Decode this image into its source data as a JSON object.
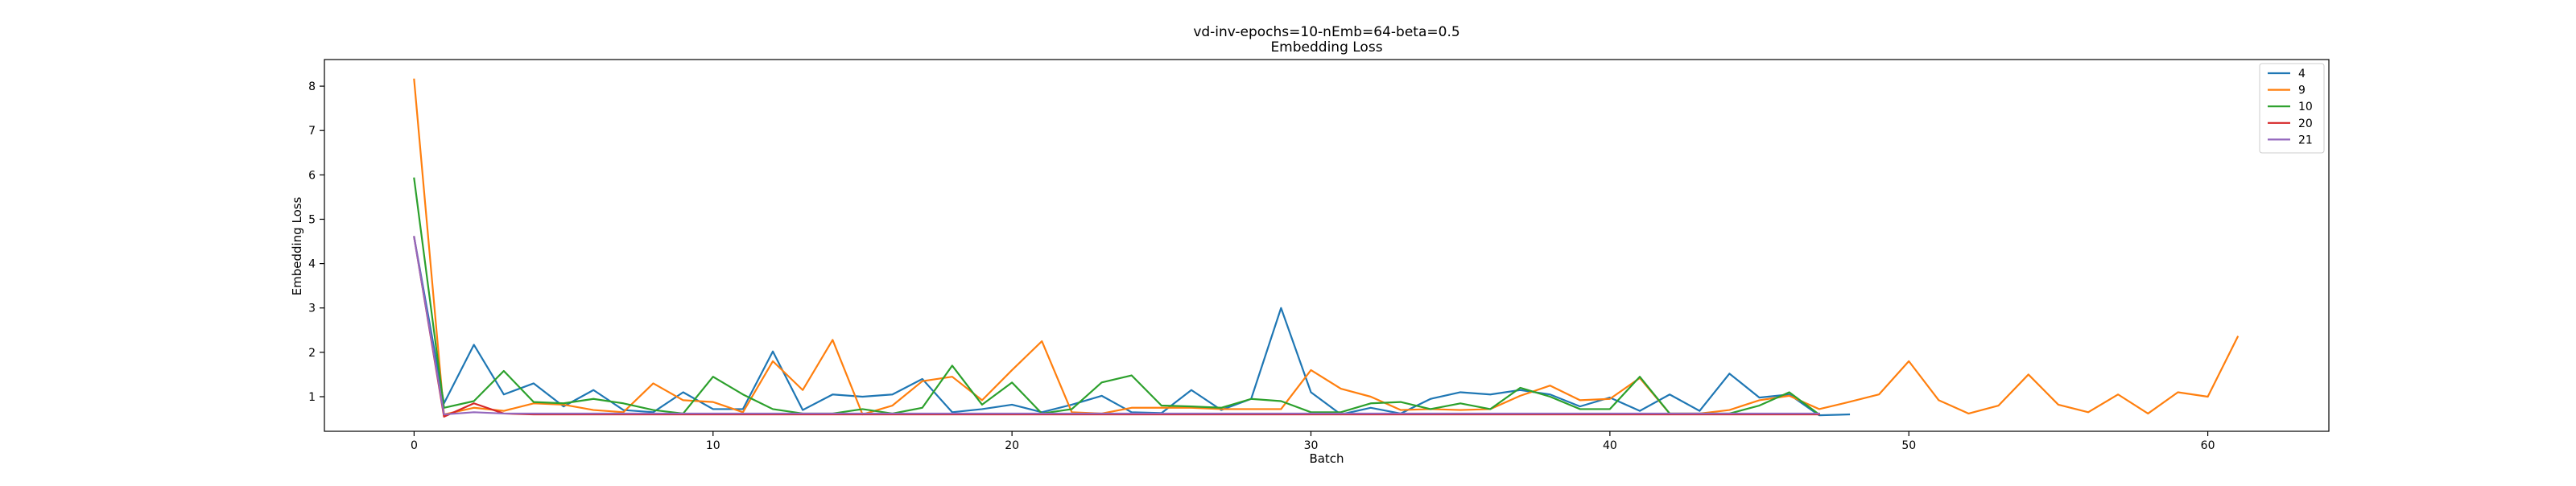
{
  "chart_data": {
    "type": "line",
    "title": "vd-inv-epochs=10-nEmb=64-beta=0.5",
    "subtitle": "Embedding Loss",
    "xlabel": "Batch",
    "ylabel": "Embedding Loss",
    "xlim": [
      -3,
      64.05
    ],
    "ylim": [
      0.22,
      8.6
    ],
    "xticks": [
      0,
      10,
      20,
      30,
      40,
      50,
      60
    ],
    "yticks": [
      1,
      2,
      3,
      4,
      5,
      6,
      7,
      8
    ],
    "grid": false,
    "legend_position": "top-right",
    "series": [
      {
        "name": "4",
        "color": "#1f77b4",
        "x": [
          0,
          1,
          2,
          3,
          4,
          5,
          6,
          7,
          8,
          9,
          10,
          11,
          12,
          13,
          14,
          15,
          16,
          17,
          18,
          19,
          20,
          21,
          22,
          23,
          24,
          25,
          26,
          27,
          28,
          29,
          30,
          31,
          32,
          33,
          34,
          35,
          36,
          37,
          38,
          39,
          40,
          41,
          42,
          43,
          44,
          45,
          46,
          47,
          48
        ],
        "values": [
          4.6,
          0.85,
          2.17,
          1.05,
          1.3,
          0.78,
          1.15,
          0.7,
          0.65,
          1.1,
          0.72,
          0.72,
          2.02,
          0.7,
          1.05,
          1.0,
          1.05,
          1.4,
          0.65,
          0.72,
          0.82,
          0.65,
          0.82,
          1.02,
          0.65,
          0.63,
          1.15,
          0.7,
          0.95,
          3.0,
          1.1,
          0.6,
          0.75,
          0.62,
          0.95,
          1.1,
          1.05,
          1.15,
          1.05,
          0.78,
          0.98,
          0.68,
          1.05,
          0.68,
          1.52,
          0.98,
          1.05,
          0.58,
          0.6
        ]
      },
      {
        "name": "9",
        "color": "#ff7f0e",
        "x": [
          0,
          1,
          2,
          3,
          4,
          5,
          6,
          7,
          8,
          9,
          10,
          11,
          12,
          13,
          14,
          15,
          16,
          17,
          18,
          19,
          20,
          21,
          22,
          23,
          24,
          25,
          26,
          27,
          28,
          29,
          30,
          31,
          32,
          33,
          34,
          35,
          36,
          37,
          38,
          39,
          40,
          41,
          42,
          43,
          44,
          45,
          46,
          47,
          48,
          49,
          50,
          51,
          52,
          53,
          54,
          55,
          56,
          57,
          58,
          59,
          60,
          61
        ],
        "values": [
          8.15,
          0.6,
          0.75,
          0.68,
          0.85,
          0.82,
          0.7,
          0.65,
          1.3,
          0.92,
          0.88,
          0.65,
          1.8,
          1.15,
          2.28,
          0.6,
          0.8,
          1.35,
          1.45,
          0.92,
          1.6,
          2.25,
          0.65,
          0.62,
          0.75,
          0.75,
          0.75,
          0.72,
          0.72,
          0.72,
          1.6,
          1.18,
          1.0,
          0.7,
          0.72,
          0.7,
          0.72,
          1.02,
          1.25,
          0.92,
          0.95,
          1.42,
          0.62,
          0.62,
          0.7,
          0.92,
          1.02,
          0.72,
          0.88,
          1.05,
          1.8,
          0.92,
          0.62,
          0.8,
          1.5,
          0.82,
          0.65,
          1.05,
          0.62,
          1.1,
          1.0,
          2.35
        ]
      },
      {
        "name": "10",
        "color": "#2ca02c",
        "x": [
          0,
          1,
          2,
          3,
          4,
          5,
          6,
          7,
          8,
          9,
          10,
          11,
          12,
          13,
          14,
          15,
          16,
          17,
          18,
          19,
          20,
          21,
          22,
          23,
          24,
          25,
          26,
          27,
          28,
          29,
          30,
          31,
          32,
          33,
          34,
          35,
          36,
          37,
          38,
          39,
          40,
          41,
          42,
          43,
          44,
          45,
          46,
          47
        ],
        "values": [
          5.92,
          0.75,
          0.9,
          1.58,
          0.88,
          0.85,
          0.95,
          0.85,
          0.7,
          0.62,
          1.45,
          1.05,
          0.72,
          0.62,
          0.62,
          0.72,
          0.62,
          0.75,
          1.7,
          0.82,
          1.32,
          0.62,
          0.72,
          1.32,
          1.48,
          0.8,
          0.78,
          0.75,
          0.95,
          0.9,
          0.65,
          0.65,
          0.85,
          0.88,
          0.72,
          0.85,
          0.72,
          1.2,
          1.0,
          0.72,
          0.72,
          1.45,
          0.62,
          0.62,
          0.62,
          0.8,
          1.1,
          0.6
        ]
      },
      {
        "name": "20",
        "color": "#d62728",
        "x": [
          0,
          1,
          2,
          3,
          4,
          5,
          6,
          7,
          8,
          9,
          10,
          11,
          12,
          13,
          14,
          15,
          16,
          17,
          18,
          19,
          20,
          21,
          22,
          23,
          24,
          25,
          26,
          27,
          28,
          29,
          30,
          31,
          32,
          33,
          34,
          35,
          36,
          37,
          38,
          39,
          40,
          41,
          42,
          43,
          44,
          45,
          46,
          47
        ],
        "values": [
          4.6,
          0.55,
          0.85,
          0.62,
          0.6,
          0.6,
          0.6,
          0.6,
          0.6,
          0.6,
          0.6,
          0.6,
          0.6,
          0.6,
          0.6,
          0.6,
          0.6,
          0.6,
          0.6,
          0.6,
          0.6,
          0.6,
          0.6,
          0.6,
          0.6,
          0.6,
          0.6,
          0.6,
          0.6,
          0.6,
          0.6,
          0.6,
          0.6,
          0.6,
          0.6,
          0.6,
          0.6,
          0.6,
          0.6,
          0.6,
          0.6,
          0.6,
          0.6,
          0.6,
          0.6,
          0.6,
          0.6,
          0.6
        ]
      },
      {
        "name": "21",
        "color": "#9467bd",
        "x": [
          0,
          1,
          2,
          3,
          4,
          5,
          6,
          7,
          8,
          9,
          10,
          11,
          12,
          13,
          14,
          15,
          16,
          17,
          18,
          19,
          20,
          21,
          22,
          23,
          24,
          25,
          26,
          27,
          28,
          29,
          30,
          31,
          32,
          33,
          34,
          35,
          36,
          37,
          38,
          39,
          40,
          41,
          42,
          43,
          44,
          45,
          46,
          47
        ],
        "values": [
          4.6,
          0.6,
          0.65,
          0.62,
          0.62,
          0.62,
          0.62,
          0.62,
          0.62,
          0.62,
          0.62,
          0.62,
          0.62,
          0.62,
          0.62,
          0.62,
          0.62,
          0.62,
          0.62,
          0.62,
          0.62,
          0.62,
          0.62,
          0.62,
          0.62,
          0.62,
          0.62,
          0.62,
          0.62,
          0.62,
          0.62,
          0.62,
          0.62,
          0.62,
          0.62,
          0.62,
          0.62,
          0.62,
          0.62,
          0.62,
          0.62,
          0.62,
          0.62,
          0.62,
          0.62,
          0.62,
          0.62,
          0.62
        ]
      }
    ]
  }
}
